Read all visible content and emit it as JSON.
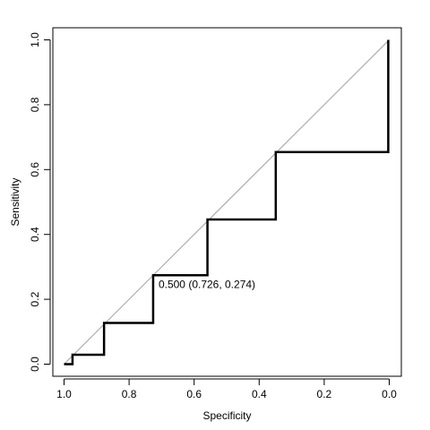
{
  "chart_data": {
    "type": "line",
    "title": "",
    "xlabel": "Specificity",
    "ylabel": "Sensitivity",
    "xlim": [
      1.0,
      0.0
    ],
    "ylim": [
      0.0,
      1.0
    ],
    "x_reversed": true,
    "grid": false,
    "legend": "none",
    "x_ticks": [
      1.0,
      0.8,
      0.6,
      0.4,
      0.2,
      0.0
    ],
    "x_tick_labels": [
      "1.0",
      "0.8",
      "0.6",
      "0.4",
      "0.2",
      "0.0"
    ],
    "y_ticks": [
      0.0,
      0.2,
      0.4,
      0.6,
      0.8,
      1.0
    ],
    "y_tick_labels": [
      "0.0",
      "0.2",
      "0.4",
      "0.6",
      "0.8",
      "1.0"
    ],
    "series": [
      {
        "line_color": "#000000",
        "points": [
          {
            "x": 1.0,
            "y": 0.0
          },
          {
            "x": 0.974,
            "y": 0.0
          },
          {
            "x": 0.974,
            "y": 0.029
          },
          {
            "x": 0.877,
            "y": 0.029
          },
          {
            "x": 0.877,
            "y": 0.127
          },
          {
            "x": 0.726,
            "y": 0.127
          },
          {
            "x": 0.726,
            "y": 0.274
          },
          {
            "x": 0.559,
            "y": 0.274
          },
          {
            "x": 0.559,
            "y": 0.446
          },
          {
            "x": 0.349,
            "y": 0.446
          },
          {
            "x": 0.349,
            "y": 0.654
          },
          {
            "x": 0.003,
            "y": 0.654
          },
          {
            "x": 0.003,
            "y": 1.0
          }
        ]
      }
    ],
    "reference_line": {
      "from": {
        "x": 1.0,
        "y": 0.0
      },
      "to": {
        "x": 0.0,
        "y": 1.0
      },
      "color": "#a0a0a0"
    },
    "annotations": [
      {
        "text": "0.500 (0.726, 0.274)",
        "x": 0.726,
        "y": 0.274
      }
    ]
  }
}
